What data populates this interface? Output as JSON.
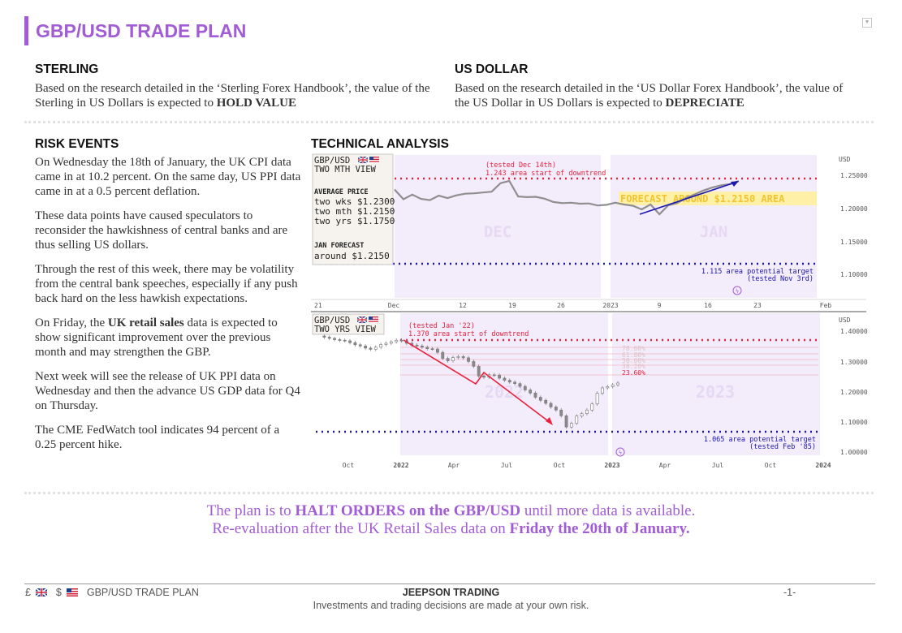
{
  "page": {
    "title": "GBP/USD TRADE PLAN"
  },
  "sterling": {
    "heading": "STERLING",
    "text": "Based on the research detailed in the ‘Sterling Forex Handbook’, the value of the Sterling in US Dollars is expected to ",
    "emphasis": "HOLD VALUE"
  },
  "usd": {
    "heading": "US DOLLAR",
    "text": "Based on the research detailed in the ‘US Dollar Forex Handbook’, the value of the US Dollar in US Dollars is expected to ",
    "emphasis": "DEPRECIATE"
  },
  "risk": {
    "heading": "RISK EVENTS",
    "p1": "On Wednesday the 18th of January, the UK CPI data came in at 10.2 percent. On the same day, US PPI data came in at a 0.5 percent deflation.",
    "p2": "These data points have caused speculators to reconsider the hawkishness of central banks and are thus selling US dollars.",
    "p3": "Through the rest of this week, there may be volatility from the central bank speeches, especially if any push back hard on the less hawkish expectations.",
    "p4_pre": "On Friday, the ",
    "p4_bold": "UK retail sales",
    "p4_post": " data is expected to show significant improvement over the previous month and may strengthen the GBP.",
    "p5": "Next week will see the release of UK PPI data on Wednesday and then the advance US GDP data for Q4 on Thursday.",
    "p6": "The CME FedWatch tool indicates 94 percent of a 0.25 percent hike."
  },
  "technical": {
    "heading": "TECHNICAL ANALYSIS",
    "chart1": {
      "pair": "GBP/USD",
      "view": "TWO MTH VIEW",
      "avg_heading": "AVERAGE PRICE",
      "avg_wks": "two wks $1.2300",
      "avg_mth": "two mth $1.2150",
      "avg_yrs": "two yrs $1.1750",
      "forecast_heading": "JAN FORECAST",
      "forecast_value": "around $1.2150",
      "note_top_1": "(tested Dec 14th)",
      "note_top_2": "1.243 area start of downtrend",
      "forecast_band": "FORECAST AROUND $1.2150 AREA",
      "note_bottom_1": "1.115 area potential target",
      "note_bottom_2": "(tested Nov 3rd)",
      "month_dec": "DEC",
      "month_jan": "JAN",
      "currency": "USD",
      "y_ticks": [
        "1.25000",
        "1.20000",
        "1.15000",
        "1.10000"
      ],
      "x_ticks": [
        "21",
        "Dec",
        "12",
        "19",
        "26",
        "2023",
        "9",
        "16",
        "23",
        "Feb"
      ],
      "close": [
        1.2296,
        1.2148,
        1.2219,
        1.2154,
        1.2135,
        1.2203,
        1.2166,
        1.2208,
        1.2232,
        1.2238,
        1.2251,
        1.2263,
        1.2393,
        1.2427,
        1.2191,
        1.2181,
        1.2186,
        1.2157,
        1.2107,
        1.2089,
        1.2096,
        1.2081,
        1.2084,
        1.2054,
        1.2064,
        1.2095,
        1.2068,
        1.205,
        1.1995,
        1.207,
        1.192,
        1.2055,
        1.2089,
        1.2167,
        1.2222,
        1.2282,
        1.2326,
        1.2361,
        1.2378,
        1.2425
      ]
    },
    "chart2": {
      "pair": "GBP/USD",
      "view": "TWO YRS VIEW",
      "note_top_1": "(tested Jan '22)",
      "note_top_2": "1.370 area start of downtrend",
      "fib_1": "78.60%",
      "fib_2": "61.80%",
      "fib_3": "50.00%",
      "fib_4": "38.20%",
      "fib_5": "23.60%",
      "note_bottom_1": "1.065 area potential target",
      "note_bottom_2": "(tested Feb '85)",
      "year_2022": "2022",
      "year_2023": "2023",
      "currency": "USD",
      "y_ticks": [
        "1.40000",
        "1.30000",
        "1.20000",
        "1.10000",
        "1.00000"
      ],
      "x_ticks": [
        "Oct",
        "2022",
        "Apr",
        "Jul",
        "Oct",
        "2023",
        "Apr",
        "Jul",
        "Oct",
        "2024"
      ],
      "weekly": [
        1.384,
        1.38,
        1.376,
        1.372,
        1.37,
        1.368,
        1.362,
        1.355,
        1.351,
        1.344,
        1.34,
        1.347,
        1.356,
        1.36,
        1.365,
        1.37,
        1.368,
        1.36,
        1.354,
        1.351,
        1.347,
        1.342,
        1.341,
        1.33,
        1.31,
        1.302,
        1.313,
        1.316,
        1.312,
        1.3,
        1.284,
        1.252,
        1.248,
        1.256,
        1.255,
        1.245,
        1.238,
        1.232,
        1.227,
        1.218,
        1.206,
        1.196,
        1.182,
        1.172,
        1.162,
        1.15,
        1.14,
        1.121,
        1.084,
        1.096,
        1.12,
        1.128,
        1.14,
        1.16,
        1.195,
        1.213,
        1.217,
        1.223,
        1.229
      ]
    }
  },
  "plan": {
    "line1_pre": "The plan is to ",
    "line1_bold": "HALT ORDERS on the GBP/USD",
    "line1_post": " until more data is available.",
    "line2_pre": "Re-evaluation after the UK Retail Sales data on ",
    "line2_bold": "Friday the 20th of January."
  },
  "footer": {
    "gbp_symbol": "£",
    "usd_symbol": "$",
    "title": "GBP/USD TRADE PLAN",
    "brand": "JEEPSON TRADING",
    "disclaimer": "Investments and trading decisions are made at your own risk.",
    "page": "-1-"
  },
  "colors": {
    "accent": "#a15cd6",
    "red": "#e8213c",
    "blue": "#1a16b0",
    "panel": "#f3ecfb",
    "forecast": "#fff0a8",
    "line": "#8f8f8f"
  }
}
